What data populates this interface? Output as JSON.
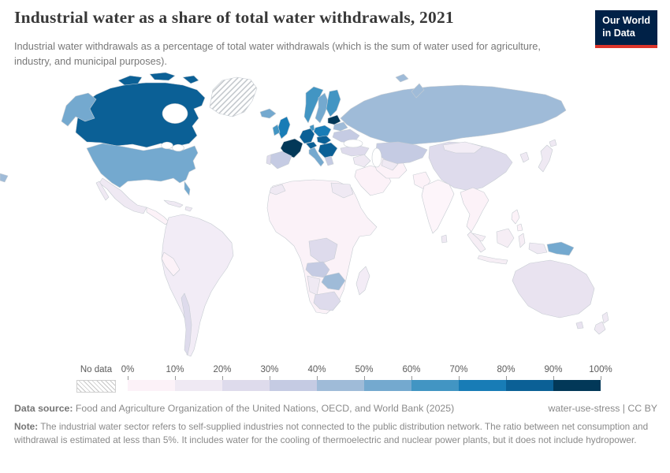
{
  "header": {
    "title": "Industrial water as a share of total water withdrawals, 2021",
    "subtitle": "Industrial water withdrawals as a percentage of total water withdrawals (which is the sum of water used for agriculture, industry, and municipal purposes).",
    "logo": {
      "line1": "Our World",
      "line2": "in Data"
    }
  },
  "legend": {
    "no_data_label": "No data"
  },
  "footer": {
    "source_label": "Data source:",
    "source_text": " Food and Agriculture Organization of the United Nations, OECD, and World Bank (2025)",
    "right_text": "water-use-stress | CC BY",
    "note_label": "Note:",
    "note_text": " The industrial water sector refers to self-supplied industries not connected to the public distribution network. The ratio between net consumption and withdrawal is estimated at less than 5%. It includes water for the cooling of thermoelectric and nuclear power plants, but it does not include hydropower."
  },
  "palette": {
    "logo_bg": "#002147",
    "logo_accent": "#dc352b",
    "title_color": "#383838",
    "subtitle_color": "#787878",
    "border_color": "#c6ccd2"
  },
  "chart_data": {
    "type": "heatmap",
    "subtype": "world-choropleth",
    "title": "Industrial water as a share of total water withdrawals",
    "year": 2021,
    "unit": "%",
    "legend_ticks": [
      "0%",
      "10%",
      "20%",
      "30%",
      "40%",
      "50%",
      "60%",
      "70%",
      "80%",
      "90%",
      "100%"
    ],
    "bins": [
      {
        "range": "0-10%",
        "color": "#fcf2f8"
      },
      {
        "range": "10-20%",
        "color": "#efe9f3"
      },
      {
        "range": "20-30%",
        "color": "#dedbec"
      },
      {
        "range": "30-40%",
        "color": "#c5cbe3"
      },
      {
        "range": "40-50%",
        "color": "#9fbbd8"
      },
      {
        "range": "50-60%",
        "color": "#74a9cf"
      },
      {
        "range": "60-70%",
        "color": "#4295c3"
      },
      {
        "range": "70-80%",
        "color": "#187cb6"
      },
      {
        "range": "80-90%",
        "color": "#0b6096"
      },
      {
        "range": "90-100%",
        "color": "#023858"
      }
    ],
    "no_data": {
      "pattern": "diagonal-hatch",
      "regions": [
        "Greenland"
      ]
    },
    "regions": [
      {
        "id": "greenland",
        "label": "Greenland",
        "bin": "No data",
        "color": "hatch"
      },
      {
        "id": "canada",
        "label": "Canada",
        "bin": "80-90%",
        "color": "#0b6096"
      },
      {
        "id": "usa",
        "label": "United States",
        "bin": "50-60%",
        "color": "#74a9cf"
      },
      {
        "id": "mexico",
        "label": "Mexico",
        "bin": "10-20%",
        "color": "#efe9f3"
      },
      {
        "id": "central-america",
        "label": "Central America",
        "bin": "0-10%",
        "color": "#fcf2f8"
      },
      {
        "id": "caribbean",
        "label": "Caribbean",
        "bin": "10-20%",
        "color": "#efe9f3"
      },
      {
        "id": "south-america",
        "label": "South America (Brazil & others)",
        "bin": "10-20%",
        "color": "#f2ecf6"
      },
      {
        "id": "chile",
        "label": "Chile",
        "bin": "20-30%",
        "color": "#dedbec"
      },
      {
        "id": "peru",
        "label": "Peru",
        "bin": "0-10%",
        "color": "#fcf2f8"
      },
      {
        "id": "iceland",
        "label": "Iceland",
        "bin": "50-60%",
        "color": "#74a9cf"
      },
      {
        "id": "norway",
        "label": "Norway",
        "bin": "60-70%",
        "color": "#4295c3"
      },
      {
        "id": "sweden",
        "label": "Sweden",
        "bin": "50-60%",
        "color": "#74a9cf"
      },
      {
        "id": "finland",
        "label": "Finland",
        "bin": "60-70%",
        "color": "#4295c3"
      },
      {
        "id": "denmark",
        "label": "Denmark",
        "bin": "60-70%",
        "color": "#4295c3"
      },
      {
        "id": "uk",
        "label": "United Kingdom",
        "bin": "70-80%",
        "color": "#187cb6"
      },
      {
        "id": "ireland",
        "label": "Ireland",
        "bin": "60-70%",
        "color": "#4295c3"
      },
      {
        "id": "france",
        "label": "France",
        "bin": "90-100%",
        "color": "#023858"
      },
      {
        "id": "spain",
        "label": "Spain",
        "bin": "30-40%",
        "color": "#c5cbe3"
      },
      {
        "id": "portugal",
        "label": "Portugal",
        "bin": "20-30%",
        "color": "#dedbec"
      },
      {
        "id": "germany",
        "label": "Germany",
        "bin": "80-90%",
        "color": "#0b6096"
      },
      {
        "id": "alpine",
        "label": "Switzerland & Austria",
        "bin": "80-90%",
        "color": "#0b6096"
      },
      {
        "id": "italy",
        "label": "Italy",
        "bin": "50-60%",
        "color": "#74a9cf"
      },
      {
        "id": "poland",
        "label": "Poland",
        "bin": "70-80%",
        "color": "#187cb6"
      },
      {
        "id": "central-europe",
        "label": "Czechia, Slovakia & Hungary",
        "bin": "80-90%",
        "color": "#0b6096"
      },
      {
        "id": "balkans",
        "label": "Romania, Bulgaria & Balkans",
        "bin": "80-90%",
        "color": "#0b6096"
      },
      {
        "id": "greece",
        "label": "Greece",
        "bin": "30-40%",
        "color": "#c5cbe3"
      },
      {
        "id": "baltics",
        "label": "Baltic states",
        "bin": "90-100%",
        "color": "#023858"
      },
      {
        "id": "belarus",
        "label": "Belarus",
        "bin": "40-50%",
        "color": "#9fbbd8"
      },
      {
        "id": "ukraine",
        "label": "Ukraine",
        "bin": "30-40%",
        "color": "#c5cbe3"
      },
      {
        "id": "russia",
        "label": "Russia",
        "bin": "40-50%",
        "color": "#9fbbd8"
      },
      {
        "id": "svalbard",
        "label": "Svalbard",
        "bin": "40-50%",
        "color": "#9fbbd8"
      },
      {
        "id": "kazakhstan",
        "label": "Kazakhstan",
        "bin": "30-40%",
        "color": "#c5cbe3"
      },
      {
        "id": "uzbek-turkmen",
        "label": "Uzbekistan & Turkmenistan",
        "bin": "10-20%",
        "color": "#efe9f3"
      },
      {
        "id": "turkey",
        "label": "Turkey",
        "bin": "20-30%",
        "color": "#dedbec"
      },
      {
        "id": "iran",
        "label": "Iran",
        "bin": "0-10%",
        "color": "#fcf2f8"
      },
      {
        "id": "arabia",
        "label": "Saudi Arabia & Gulf states",
        "bin": "0-10%",
        "color": "#fcf2f8"
      },
      {
        "id": "iraq-syria",
        "label": "Iraq & Syria",
        "bin": "10-20%",
        "color": "#efe9f3"
      },
      {
        "id": "india",
        "label": "India",
        "bin": "0-10%",
        "color": "#fdf5fa"
      },
      {
        "id": "pakistan",
        "label": "Pakistan",
        "bin": "0-10%",
        "color": "#fcf2f8"
      },
      {
        "id": "sri-lanka",
        "label": "Sri Lanka",
        "bin": "10-20%",
        "color": "#efe9f3"
      },
      {
        "id": "china",
        "label": "China",
        "bin": "20-30%",
        "color": "#dedbec"
      },
      {
        "id": "mongolia",
        "label": "Mongolia",
        "bin": "10-20%",
        "color": "#f3edf6"
      },
      {
        "id": "se-asia",
        "label": "Mainland Southeast Asia",
        "bin": "0-10%",
        "color": "#fcf2f8"
      },
      {
        "id": "korea",
        "label": "Korea",
        "bin": "10-20%",
        "color": "#efe9f3"
      },
      {
        "id": "japan",
        "label": "Japan",
        "bin": "10-20%",
        "color": "#efe9f3"
      },
      {
        "id": "philippines",
        "label": "Philippines",
        "bin": "0-10%",
        "color": "#fcf2f8"
      },
      {
        "id": "indonesia",
        "label": "Indonesia & Malaysia",
        "bin": "0-10%",
        "color": "#f6eef5"
      },
      {
        "id": "west-papua",
        "label": "Western New Guinea",
        "bin": "10-20%",
        "color": "#efe9f3"
      },
      {
        "id": "png",
        "label": "Papua New Guinea",
        "bin": "50-60%",
        "color": "#74a9cf"
      },
      {
        "id": "australia",
        "label": "Australia",
        "bin": "10-20%",
        "color": "#e9e3f0"
      },
      {
        "id": "new-zealand",
        "label": "New Zealand",
        "bin": "10-20%",
        "color": "#efe9f3"
      },
      {
        "id": "africa-other",
        "label": "Africa (most countries)",
        "bin": "0-10%",
        "color": "#fbf2f8"
      },
      {
        "id": "morocco",
        "label": "Morocco",
        "bin": "10-20%",
        "color": "#efe9f3"
      },
      {
        "id": "egypt",
        "label": "Egypt",
        "bin": "10-20%",
        "color": "#efe9f3"
      },
      {
        "id": "drc",
        "label": "Democratic Republic of Congo",
        "bin": "20-30%",
        "color": "#dedbec"
      },
      {
        "id": "angola",
        "label": "Angola",
        "bin": "30-40%",
        "color": "#c5cbe3"
      },
      {
        "id": "zambezi",
        "label": "Zambia, Zimbabwe & Mozambique",
        "bin": "40-50%",
        "color": "#9fbbd8"
      },
      {
        "id": "south-africa",
        "label": "South Africa",
        "bin": "20-30%",
        "color": "#dedbec"
      },
      {
        "id": "namibia-botswana",
        "label": "Namibia & Botswana",
        "bin": "10-20%",
        "color": "#efe9f3"
      },
      {
        "id": "madagascar",
        "label": "Madagascar",
        "bin": "10-20%",
        "color": "#f3ecf6"
      }
    ]
  }
}
